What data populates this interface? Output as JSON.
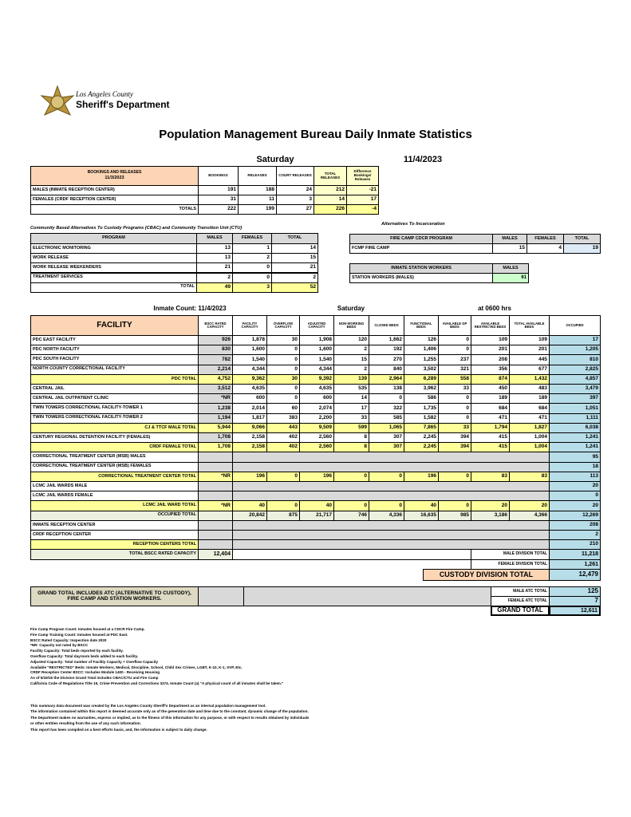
{
  "header": {
    "county": "Los Angeles County",
    "department": "Sheriff's Department",
    "title": "Population Management Bureau Daily Inmate Statistics",
    "day": "Saturday",
    "date": "11/4/2023"
  },
  "bookings": {
    "headers": [
      "BOOKINGS AND RELEASES",
      "BOOKINGS",
      "RELEASES",
      "COURT RELEASES",
      "TOTAL RELEASES",
      "Difference Bookings/ Releases"
    ],
    "header_date": "11/3/2023",
    "rows": [
      [
        "MALES (INMATE RECEPTION CENTER)",
        "191",
        "188",
        "24",
        "212",
        "-21"
      ],
      [
        "FEMALES (CRDF RECEPTION CENTER)",
        "31",
        "11",
        "3",
        "14",
        "17"
      ],
      [
        "TOTALS",
        "222",
        "199",
        "27",
        "226",
        "-4"
      ]
    ]
  },
  "cbac": {
    "title": "Community Based Alternatives To Custody Programs (CBAC) and Community Transition Unit (CTU)",
    "headers": [
      "PROGRAM",
      "MALES",
      "FEMALES",
      "TOTAL"
    ],
    "rows": [
      [
        "ELECTRONIC MONITORING",
        "13",
        "1",
        "14"
      ],
      [
        "WORK RELEASE",
        "13",
        "2",
        "15"
      ],
      [
        "WORK RELEASE WEEKENDERS",
        "21",
        "0",
        "21"
      ],
      [
        "TREATMENT SERVICES",
        "2",
        "0",
        "2"
      ],
      [
        "TOTAL",
        "49",
        "3",
        "52"
      ]
    ]
  },
  "alternatives": {
    "title": "Alternatives To Incarceration",
    "fire_camp": {
      "headers": [
        "FIRE CAMP CDCR PROGRAM",
        "MALES",
        "FEMALES",
        "TOTAL"
      ],
      "row": [
        "FCMP FIRE CAMP",
        "15",
        "4",
        "19"
      ]
    },
    "station": {
      "headers": [
        "INMATE STATION WORKERS",
        "MALES"
      ],
      "row": [
        "STATION WORKERS (MALES)",
        "61"
      ]
    }
  },
  "inmate_count": {
    "label": "Inmate Count: 11/4/2023",
    "day": "Saturday",
    "time": "at 0600 hrs"
  },
  "main": {
    "headers": [
      "FACILITY",
      "BSCC RATED CAPACITY",
      "FACILITY CAPACITY",
      "OVERFLOW CAPACITY",
      "ADJUSTED CAPACITY",
      "NON-WORKING BEDS",
      "CLOSED BEDS",
      "FUNCTIONAL BEDS",
      "AVAILABLE GP BEDS",
      "AVAILABLE RESTRICTED BEDS",
      "TOTAL AVAILABLE BEDS",
      "OCCUPIED"
    ],
    "rows": [
      [
        "PDC EAST FACILITY",
        "926",
        "1,878",
        "30",
        "1,908",
        "120",
        "1,662",
        "126",
        "0",
        "109",
        "109",
        "17"
      ],
      [
        "PDC NORTH FACILITY",
        "830",
        "1,600",
        "0",
        "1,600",
        "2",
        "192",
        "1,406",
        "0",
        "201",
        "201",
        "1,205"
      ],
      [
        "PDC SOUTH FACILITY",
        "782",
        "1,540",
        "0",
        "1,540",
        "15",
        "270",
        "1,255",
        "237",
        "208",
        "445",
        "810"
      ],
      [
        "NORTH COUNTY CORRECTIONAL FACILITY",
        "2,214",
        "4,344",
        "0",
        "4,344",
        "2",
        "840",
        "3,502",
        "321",
        "356",
        "677",
        "2,825"
      ],
      [
        "PDC TOTAL",
        "4,752",
        "9,362",
        "30",
        "9,392",
        "139",
        "2,964",
        "6,289",
        "558",
        "874",
        "1,432",
        "4,857"
      ],
      [
        "CENTRAL JAIL",
        "3,512",
        "4,635",
        "0",
        "4,635",
        "535",
        "138",
        "3,962",
        "33",
        "450",
        "483",
        "3,479"
      ],
      [
        "CENTRAL JAIL OUTPATIENT CLINIC",
        "*NR",
        "600",
        "0",
        "600",
        "14",
        "0",
        "586",
        "0",
        "189",
        "189",
        "397"
      ],
      [
        "TWIN TOWERS CORRECTIONAL FACILITY-TOWER 1",
        "1,238",
        "2,014",
        "60",
        "2,074",
        "17",
        "322",
        "1,735",
        "0",
        "684",
        "684",
        "1,051"
      ],
      [
        "TWIN TOWERS CORRECTIONAL FACILITY-TOWER 2",
        "1,194",
        "1,817",
        "383",
        "2,200",
        "33",
        "585",
        "1,582",
        "0",
        "471",
        "471",
        "1,111"
      ],
      [
        "CJ & TTCF MALE TOTAL",
        "5,944",
        "9,066",
        "443",
        "9,509",
        "599",
        "1,065",
        "7,865",
        "33",
        "1,794",
        "1,827",
        "6,038"
      ],
      [
        "CENTURY REGIONAL DETENTION FACILITY (FEMALES)",
        "1,708",
        "2,158",
        "402",
        "2,560",
        "8",
        "307",
        "2,245",
        "394",
        "415",
        "1,004",
        "1,241"
      ],
      [
        "CRDF FEMALE TOTAL",
        "1,708",
        "2,158",
        "402",
        "2,560",
        "8",
        "307",
        "2,245",
        "394",
        "415",
        "1,004",
        "1,241"
      ],
      [
        "CORRECTIONAL TREATMENT CENTER (MSB) MALES",
        "95"
      ],
      [
        "CORRECTIONAL TREATMENT CENTER (MSB) FEMALES",
        "18"
      ],
      [
        "CORRECTIONAL TREATMENT CENTER TOTAL",
        "*NR",
        "196",
        "0",
        "196",
        "0",
        "0",
        "196",
        "0",
        "83",
        "83",
        "113"
      ],
      [
        "LCMC JAIL WARDS MALE",
        "20"
      ],
      [
        "LCMC JAIL WARDS FEMALE",
        "0"
      ],
      [
        "LCMC JAIL WARD TOTAL",
        "*NR",
        "40",
        "0",
        "40",
        "0",
        "0",
        "40",
        "0",
        "20",
        "20",
        "20"
      ],
      [
        "OCCUPIED TOTAL",
        null,
        "20,842",
        "875",
        "21,717",
        "746",
        "4,336",
        "16,635",
        "985",
        "3,186",
        "4,366",
        "12,269"
      ],
      [
        "INMATE RECEPTION CENTER",
        "208"
      ],
      [
        "CRDF RECEPTION CENTER",
        "2"
      ],
      [
        "RECEPTION CENTERS TOTAL",
        "210"
      ]
    ]
  },
  "summary": {
    "bscc": [
      "TOTAL BSCC RATED CAPACITY",
      "12,404"
    ],
    "divisions": [
      [
        "MALE DIVISION TOTAL",
        "11,218"
      ],
      [
        "FEMALE DIVISION TOTAL",
        "1,261"
      ],
      [
        "CUSTODY DIVISION TOTAL",
        "12,479"
      ]
    ]
  },
  "grand": {
    "note": "GRAND TOTAL INCLUDES ATC (ALTERNATIVE TO CUSTODY), FIRE CAMP AND STATION WORKERS.",
    "rows": [
      [
        "MALE ATC TOTAL",
        "125"
      ],
      [
        "FEMALE ATC TOTAL",
        "7"
      ],
      [
        "GRAND TOTAL",
        "12,611"
      ]
    ]
  },
  "footnotes": [
    "Fire Camp Program Count: Inmates housed at a CDCR Fire Camp.",
    "Fire Camp Training Count: Inmates housed at PDC East.",
    "BSCC Rated Capacity: Inspection date 2020",
    "*NR: Capacity not rated by BSCC",
    "Facility Capacity: Total beds reported by each facility.",
    "Overflow Capacity: Total dayroom beds added to each facility.",
    "Adjusted Capacity: Total number of Facility Capacity + Overflow Capacity",
    "Available \"RESTRICTED\" Beds: Inmate Workers, Medical, Discipline, School, Child Sex Crimes, LGBT, K-10, K-1, SVP, Etc.",
    "CRDF Reception Center BSCC: Includes Module 1400 - Receiving Housing",
    "As of 5/19/15 the Division Grand Total includes CBAC/CTU and Fire Camp",
    "California Code of Regulations Title 15, Crime Prevention and Corrections 3274. Inmate Count (a) \"A physical count of all inmates shall be taken.\""
  ],
  "disclaimer": [
    "This summary data document was created by the Los Angeles County Sheriff's Department as an internal population management tool.",
    "The information contained within this report is deemed accurate only as of the generation date and time due to the constant, dynamic change of the population.",
    "The Department makes no warranties, express or implied, as to the fitness of this information for any purpose, or with respect to results obtained by individuals",
    "or other entities resulting from the use of any such information.",
    "This report has been compiled on a best efforts basis, and, the information is subject to daily change."
  ]
}
